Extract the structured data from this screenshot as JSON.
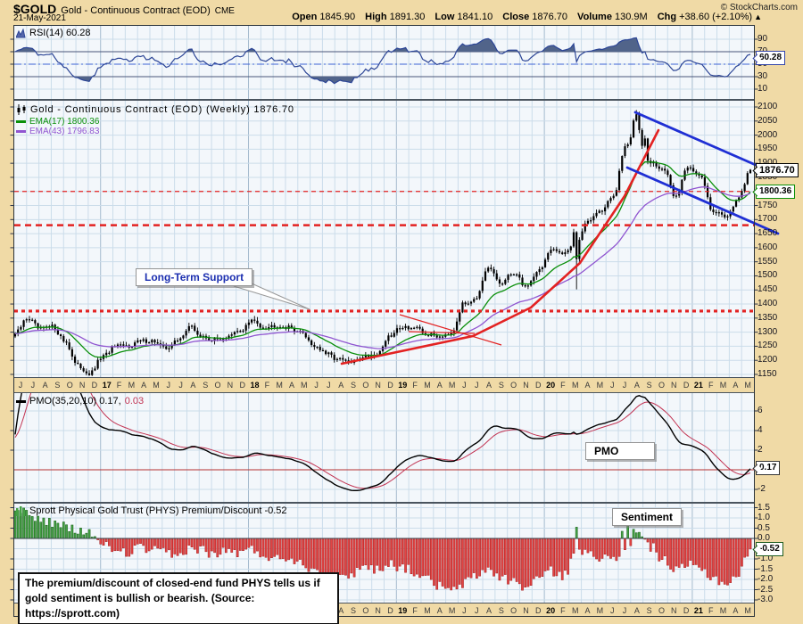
{
  "header": {
    "symbol": "$GOLD",
    "name": "Gold - Continuous Contract (EOD)",
    "exchange": "CME",
    "date": "21-May-2021",
    "copyright": "© StockCharts.com",
    "open_label": "Open",
    "open": "1845.90",
    "high_label": "High",
    "high": "1891.30",
    "low_label": "Low",
    "low": "1841.10",
    "close_label": "Close",
    "close": "1876.70",
    "volume_label": "Volume",
    "volume": "130.9M",
    "chg_label": "Chg",
    "chg": "+38.60 (+2.10%)",
    "arrow": "▲"
  },
  "rsi_panel": {
    "label": "RSI(14) 60.28",
    "badge": "60.28"
  },
  "main_panel": {
    "title": "Gold - Continuous Contract (EOD) (Weekly) 1876.70",
    "ema17_label": "EMA(17) 1800.36",
    "ema43_label": "EMA(43) 1796.83",
    "price_badge": "1876.70",
    "ema_badge": "1800.36"
  },
  "pmo_panel": {
    "label": "PMO(35,20,10) 0.17,",
    "signal_value": "0.03",
    "badge": "0.17"
  },
  "sent_panel": {
    "label": "Sprott Physical Gold Trust (PHYS) Premium/Discount -0.52",
    "badge": "-0.52"
  },
  "boxes": {
    "long_term_support": "Long-Term Support",
    "pmo": "PMO",
    "sentiment": "Sentiment",
    "annotation": "The premium/discount of closed-end fund PHYS tells us if gold sentiment is bullish or bearish. (Source: https://sprott.com)"
  },
  "colors": {
    "tan": "#F0DAA6",
    "panel_bg": "#F3F7FB",
    "grid": "#CBDCEA",
    "grid_year": "#A5BACE",
    "frame": "#4A545E",
    "candle": "#000000",
    "ema17": "#0A8F0A",
    "ema43": "#9055D0",
    "rsi": "#2C4596",
    "rsi_fill": "#51648A",
    "rsi_band": "#4A5578",
    "rsi_mid": "#3E63D6",
    "pmo_signal": "#C23352",
    "zero_red": "#B53032",
    "bar_pos": "#44A044",
    "bar_pos_edge": "#1C601C",
    "bar_neg": "#E24444",
    "bar_neg_edge": "#A51F1F",
    "support_red": "#E32222",
    "trend_blue": "#1F2FD4",
    "trend_red": "#E32222"
  },
  "chart_data": {
    "type": "multi-panel-financial",
    "x_axis_labels": [
      "J",
      "J",
      "A",
      "S",
      "O",
      "N",
      "D",
      "17",
      "F",
      "M",
      "A",
      "M",
      "J",
      "J",
      "A",
      "S",
      "O",
      "N",
      "D",
      "18",
      "F",
      "M",
      "A",
      "M",
      "J",
      "J",
      "A",
      "S",
      "O",
      "N",
      "D",
      "19",
      "F",
      "M",
      "A",
      "M",
      "J",
      "J",
      "A",
      "S",
      "O",
      "N",
      "D",
      "20",
      "F",
      "M",
      "A",
      "M",
      "J",
      "J",
      "A",
      "S",
      "O",
      "N",
      "D",
      "21",
      "F",
      "M",
      "A",
      "M"
    ],
    "panels": [
      {
        "id": "rsi",
        "type": "line",
        "indicator": "RSI(14)",
        "last": 60.28,
        "ylim": [
          5,
          95
        ],
        "scale_ticks": [
          90,
          70,
          50,
          30,
          10
        ],
        "overbought": 70,
        "midline": 50,
        "oversold": 30
      },
      {
        "id": "price",
        "type": "candlestick",
        "interval": "Weekly",
        "last": 1876.7,
        "ylim": [
          1150,
          2100
        ],
        "scale_ticks": [
          2100,
          2050,
          2000,
          1950,
          1900,
          1850,
          1800,
          1750,
          1700,
          1650,
          1600,
          1550,
          1500,
          1450,
          1400,
          1350,
          1300,
          1250,
          1200,
          1150
        ],
        "ema_periods": [
          17,
          43
        ],
        "ema_last": [
          1800.36,
          1796.83
        ],
        "monthly_close_anchors": [
          1295,
          1350,
          1310,
          1320,
          1268,
          1180,
          1152,
          1212,
          1248,
          1250,
          1268,
          1270,
          1242,
          1268,
          1320,
          1282,
          1272,
          1282,
          1303,
          1340,
          1318,
          1325,
          1316,
          1298,
          1252,
          1222,
          1202,
          1192,
          1216,
          1222,
          1282,
          1320,
          1315,
          1292,
          1286,
          1302,
          1400,
          1424,
          1526,
          1472,
          1512,
          1462,
          1520,
          1588,
          1584,
          1620,
          1700,
          1732,
          1780,
          1962,
          1972,
          1900,
          1880,
          1782,
          1892,
          1850,
          1732,
          1712,
          1770,
          1876.7
        ],
        "week_overrides": {
          "196": 1655,
          "197": 1560,
          "198": 1628,
          "216": 1992,
          "217": 2052,
          "218": 2074,
          "219": 2018,
          "220": 1962,
          "221": 1988
        },
        "peak_week": 218,
        "peak_high": 2089,
        "crash_week": 197,
        "crash_low": 1452
      },
      {
        "id": "pmo",
        "type": "line",
        "indicator": "PMO(35,20,10)",
        "last": 0.17,
        "signal_last": 0.03,
        "ylim": [
          -2.8,
          7
        ],
        "scale_ticks": [
          6,
          4,
          2,
          -2
        ],
        "init_roc_ema": 25,
        "init_pmo": 3.6,
        "init_signal": 3.3
      },
      {
        "id": "sentiment",
        "type": "bar",
        "indicator": "PHYS Premium/Discount",
        "last": -0.52,
        "ylim": [
          -3.2,
          1.7
        ],
        "scale_ticks": [
          "1.5",
          "1.0",
          "0.5",
          "0.0",
          "-1.0",
          "-1.5",
          "-2.0",
          "-2.5",
          "-3.0"
        ],
        "monthly_anchors": [
          1.35,
          1.2,
          0.95,
          0.75,
          0.55,
          0.35,
          0.3,
          -0.35,
          -0.5,
          -0.7,
          -0.45,
          -0.6,
          -0.7,
          -0.9,
          -0.45,
          -0.55,
          -0.8,
          -0.6,
          -0.7,
          -0.55,
          -0.8,
          -1.0,
          -0.9,
          -1.2,
          -1.5,
          -1.8,
          -2.0,
          -1.7,
          -1.35,
          -1.5,
          -1.2,
          -1.4,
          -1.6,
          -2.0,
          -2.3,
          -2.6,
          -2.2,
          -1.8,
          -1.5,
          -1.9,
          -2.1,
          -2.4,
          -1.9,
          -1.6,
          -1.8,
          -0.8,
          -0.5,
          -0.9,
          -1.1,
          -0.5,
          0.2,
          -0.4,
          -1.0,
          -1.6,
          -1.3,
          -1.5,
          -1.9,
          -2.2,
          -1.8,
          -0.52
        ],
        "week_overrides": {
          "197": 0.55,
          "213": 0.35,
          "215": 0.68,
          "217": 0.45,
          "219": 0.3
        }
      }
    ],
    "annotations": {
      "dashed_levels": {
        "thin": 1800,
        "thick": 1680,
        "dotted": 1375
      },
      "red_trend": [
        [
          383,
          408
        ],
        [
          530,
          377
        ],
        [
          595,
          345
        ],
        [
          650,
          295
        ],
        [
          700,
          220
        ],
        [
          738,
          146
        ]
      ],
      "pennant": [
        [
          448,
          353,
          562,
          387
        ],
        [
          458,
          372,
          532,
          374
        ]
      ],
      "upper_channel": [
        712,
        126,
        872,
        196
      ],
      "lower_channel": [
        703,
        188,
        872,
        262
      ],
      "callout_tail": [
        [
          282,
          318
        ],
        [
          347,
          347
        ],
        [
          262,
          321
        ]
      ]
    }
  }
}
